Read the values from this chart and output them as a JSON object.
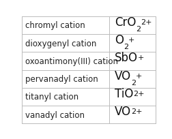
{
  "rows": [
    {
      "name": "chromyl cation",
      "base": "CrO",
      "sub": "2",
      "sup": "2+"
    },
    {
      "name": "dioxygenyl cation",
      "base": "O",
      "sub": "2",
      "sup": "+"
    },
    {
      "name": "oxoantimony(III) cation",
      "base": "SbO",
      "sub": null,
      "sup": "+"
    },
    {
      "name": "pervanadyl cation",
      "base": "VO",
      "sub": "2",
      "sup": "+"
    },
    {
      "name": "titanyl cation",
      "base": "TiO",
      "sub": null,
      "sup": "2+"
    },
    {
      "name": "vanadyl cation",
      "base": "VO",
      "sub": null,
      "sup": "2+"
    }
  ],
  "col_split": 0.655,
  "bg_color": "#ffffff",
  "line_color": "#bbbbbb",
  "text_color": "#222222",
  "formula_color": "#111111",
  "name_fontsize": 8.5,
  "formula_base_fontsize": 12,
  "formula_script_fontsize": 8
}
